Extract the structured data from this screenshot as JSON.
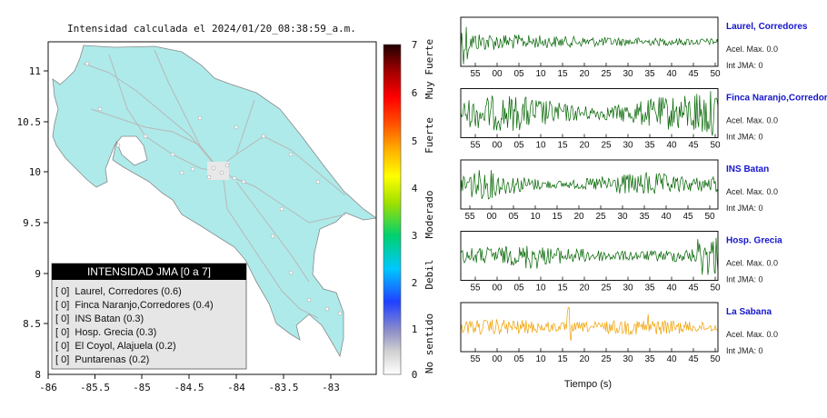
{
  "map": {
    "title": "Intensidad calculada el 2024/01/20_08:38:59_a.m.",
    "x_ticks": [
      "-86",
      "-85.5",
      "-85",
      "-84.5",
      "-84",
      "-83.5",
      "-83"
    ],
    "y_ticks": [
      "11",
      "10.5",
      "10",
      "9.5",
      "9",
      "8.5",
      "8"
    ],
    "land_color": "#aeeaea",
    "legend": {
      "title": "INTENSIDAD JMA [0 a 7]",
      "items": [
        "[ 0]  Laurel, Corredores (0.6)",
        "[ 0]  Finca Naranjo,Corredores (0.4)",
        "[ 0]  INS Batan (0.3)",
        "[ 0]  Hosp. Grecia (0.3)",
        "[ 0]  El Coyol, Alajuela (0.2)",
        "[ 0]  Puntarenas (0.2)"
      ]
    }
  },
  "colorbar": {
    "ticks": [
      "7",
      "6",
      "5",
      "4",
      "3",
      "2",
      "1",
      "0"
    ],
    "labels": [
      "Muy Fuerte",
      "Fuerte",
      "Moderado",
      "Debil",
      "No sentido"
    ]
  },
  "waveforms": {
    "xlabel": "Tiempo (s)",
    "stations": [
      {
        "name": "Laurel, Corredores",
        "acel": "Acel. Max. 0.0",
        "jma": "Int JMA: 0",
        "color": "#006400",
        "ticks": [
          "55",
          "00",
          "05",
          "10",
          "15",
          "20",
          "25",
          "30",
          "35",
          "40",
          "45",
          "50"
        ]
      },
      {
        "name": "Finca Naranjo,Corredores",
        "acel": "Acel. Max. 0.0",
        "jma": "Int JMA: 0",
        "color": "#006400",
        "ticks": [
          "55",
          "00",
          "05",
          "10",
          "15",
          "20",
          "25",
          "30",
          "35",
          "40",
          "45",
          "50"
        ]
      },
      {
        "name": "INS Batan",
        "acel": "Acel. Max. 0.0",
        "jma": "Int JMA: 0",
        "color": "#006400",
        "ticks": [
          "55",
          "00",
          "05",
          "10",
          "15",
          "20",
          "25",
          "30",
          "35",
          "40",
          "45",
          "50"
        ]
      },
      {
        "name": "Hosp. Grecia",
        "acel": "Acel. Max. 0.0",
        "jma": "Int JMA: 0",
        "color": "#006400",
        "ticks": [
          "55",
          "00",
          "05",
          "10",
          "15",
          "20",
          "25",
          "30",
          "35",
          "40",
          "45",
          "50"
        ]
      },
      {
        "name": "La Sabana",
        "acel": "Acel. Max. 0.0",
        "jma": "Int JMA: 0",
        "color": "#f0a000",
        "ticks": [
          "55",
          "00",
          "05",
          "10",
          "15",
          "20",
          "25",
          "30",
          "35",
          "40",
          "45",
          "50"
        ]
      }
    ]
  }
}
